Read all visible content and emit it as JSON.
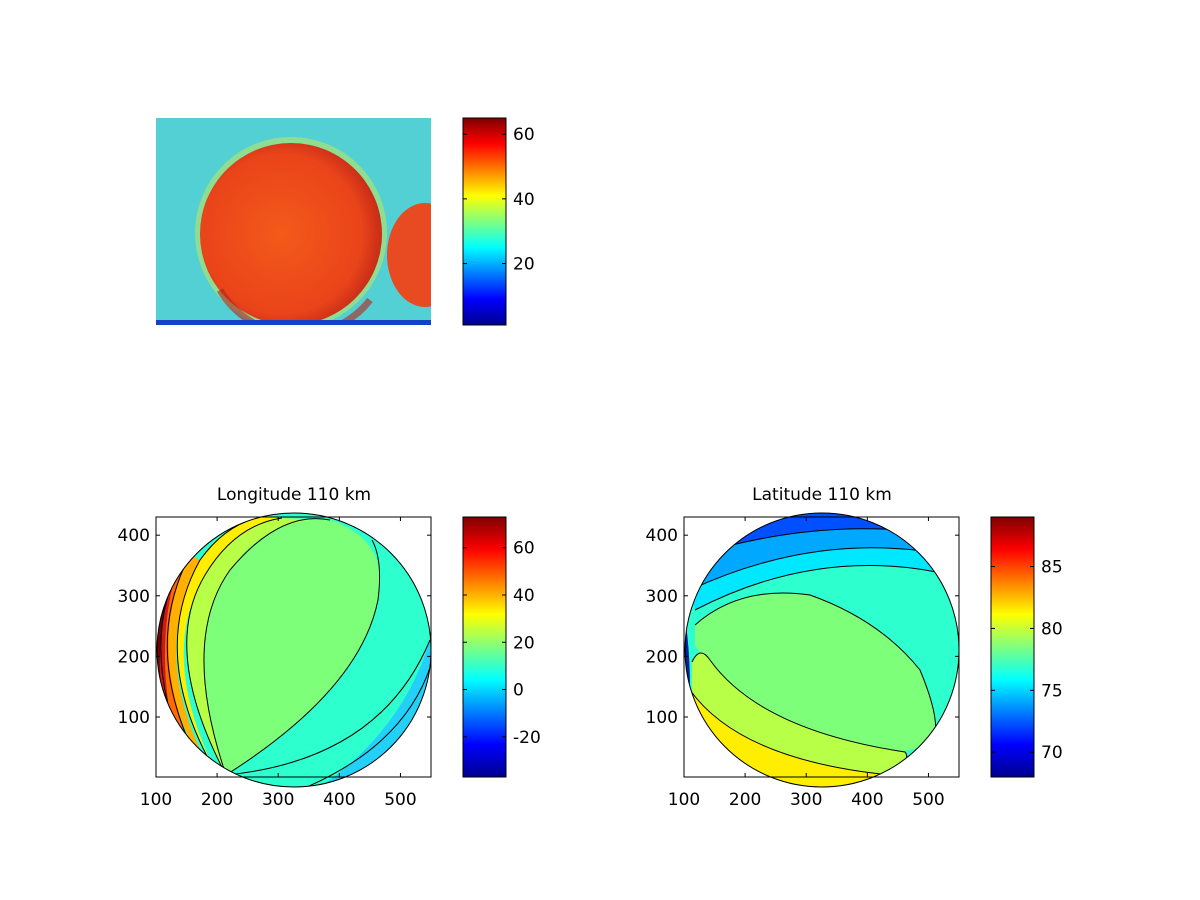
{
  "figure": {
    "background": "#ffffff",
    "colormap": "jet"
  },
  "chart_data": [
    {
      "id": "image",
      "type": "heatmap",
      "title": "",
      "content": "false-color camera image: bright red disc on a cyan background, second partial disc at right edge",
      "axes_visible": false,
      "colorbar": {
        "min": 1,
        "max": 65,
        "ticks": [
          20,
          40,
          60
        ]
      }
    },
    {
      "id": "longitude",
      "type": "heatmap",
      "title": "Longitude 110 km",
      "xlabel": "",
      "ylabel": "",
      "xlim": [
        100,
        550
      ],
      "ylim": [
        1,
        430
      ],
      "xticks": [
        100,
        200,
        300,
        400,
        500
      ],
      "yticks": [
        100,
        200,
        300,
        400
      ],
      "disc": {
        "center": [
          326,
          215
        ],
        "radius": 226
      },
      "colorbar": {
        "min": -37,
        "max": 73,
        "ticks": [
          -20,
          0,
          20,
          40,
          60
        ]
      },
      "contour_values": [
        70,
        60,
        50,
        45,
        40,
        35,
        30,
        25,
        20,
        10,
        0,
        -10,
        -20
      ],
      "dominant_regions": [
        15,
        8
      ]
    },
    {
      "id": "latitude",
      "type": "heatmap",
      "title": "Latitude 110 km",
      "xlabel": "",
      "ylabel": "",
      "xlim": [
        100,
        550
      ],
      "ylim": [
        1,
        430
      ],
      "xticks": [
        100,
        200,
        300,
        400,
        500
      ],
      "yticks": [
        100,
        200,
        300,
        400
      ],
      "disc": {
        "center": [
          326,
          215
        ],
        "radius": 226
      },
      "colorbar": {
        "min": 68,
        "max": 89,
        "ticks": [
          70,
          75,
          80,
          85
        ]
      },
      "contour_values": [
        70,
        72,
        73,
        74,
        75,
        76,
        78,
        80,
        82,
        84,
        86,
        88
      ],
      "dominant_regions": [
        76,
        78
      ]
    }
  ]
}
